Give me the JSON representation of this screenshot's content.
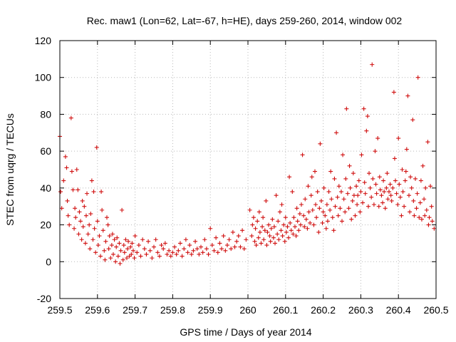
{
  "chart_data": {
    "type": "scatter",
    "title": "Rec. maw1 (Lon=62, Lat=-67, h=HE), days 259-260, 2014, window 002",
    "xlabel": "GPS time / Days of year 2014",
    "ylabel": "STEC from uqrg / TECUs",
    "xlim": [
      259.5,
      260.5
    ],
    "ylim": [
      -20,
      120
    ],
    "xticks": [
      259.5,
      259.6,
      259.7,
      259.8,
      259.9,
      260,
      260.1,
      260.2,
      260.3,
      260.4,
      260.5
    ],
    "xtick_labels": [
      "259.5",
      "259.6",
      "259.7",
      "259.8",
      "259.9",
      "260",
      "260.1",
      "260.2",
      "260.3",
      "260.4",
      "260.5"
    ],
    "yticks": [
      -20,
      0,
      20,
      40,
      60,
      80,
      100,
      120
    ],
    "ytick_labels": [
      "-20",
      "0",
      "20",
      "40",
      "60",
      "80",
      "100",
      "120"
    ],
    "grid": true,
    "marker": "+",
    "color": "#d01010",
    "points": [
      [
        259.5,
        68
      ],
      [
        259.502,
        38
      ],
      [
        259.505,
        29
      ],
      [
        259.51,
        44
      ],
      [
        259.515,
        57
      ],
      [
        259.518,
        51
      ],
      [
        259.52,
        33
      ],
      [
        259.522,
        25
      ],
      [
        259.525,
        20
      ],
      [
        259.53,
        78
      ],
      [
        259.532,
        49
      ],
      [
        259.535,
        39
      ],
      [
        259.538,
        18
      ],
      [
        259.54,
        29
      ],
      [
        259.542,
        24
      ],
      [
        259.545,
        50
      ],
      [
        259.548,
        39
      ],
      [
        259.55,
        15
      ],
      [
        259.552,
        27
      ],
      [
        259.555,
        22
      ],
      [
        259.558,
        12
      ],
      [
        259.56,
        33
      ],
      [
        259.562,
        19
      ],
      [
        259.565,
        30
      ],
      [
        259.568,
        10
      ],
      [
        259.57,
        25
      ],
      [
        259.572,
        37
      ],
      [
        259.575,
        15
      ],
      [
        259.578,
        20
      ],
      [
        259.58,
        7
      ],
      [
        259.582,
        26
      ],
      [
        259.585,
        44
      ],
      [
        259.588,
        12
      ],
      [
        259.59,
        38
      ],
      [
        259.592,
        18
      ],
      [
        259.595,
        5
      ],
      [
        259.598,
        62
      ],
      [
        259.6,
        22
      ],
      [
        259.602,
        9
      ],
      [
        259.605,
        14
      ],
      [
        259.608,
        3
      ],
      [
        259.61,
        38
      ],
      [
        259.612,
        28
      ],
      [
        259.615,
        17
      ],
      [
        259.618,
        6
      ],
      [
        259.62,
        1
      ],
      [
        259.622,
        11
      ],
      [
        259.625,
        24
      ],
      [
        259.628,
        20
      ],
      [
        259.63,
        7
      ],
      [
        259.632,
        14
      ],
      [
        259.635,
        2
      ],
      [
        259.638,
        9
      ],
      [
        259.64,
        15
      ],
      [
        259.642,
        4
      ],
      [
        259.645,
        12
      ],
      [
        259.648,
        0
      ],
      [
        259.65,
        8
      ],
      [
        259.652,
        13
      ],
      [
        259.655,
        3
      ],
      [
        259.658,
        10
      ],
      [
        259.66,
        -1
      ],
      [
        259.662,
        6
      ],
      [
        259.665,
        28
      ],
      [
        259.668,
        1
      ],
      [
        259.67,
        9
      ],
      [
        259.672,
        5
      ],
      [
        259.675,
        12
      ],
      [
        259.678,
        2
      ],
      [
        259.68,
        7
      ],
      [
        259.682,
        11
      ],
      [
        259.685,
        3
      ],
      [
        259.688,
        8
      ],
      [
        259.69,
        4
      ],
      [
        259.692,
        10
      ],
      [
        259.695,
        6
      ],
      [
        259.698,
        2
      ],
      [
        259.7,
        14
      ],
      [
        259.705,
        5
      ],
      [
        259.71,
        9
      ],
      [
        259.715,
        3
      ],
      [
        259.72,
        12
      ],
      [
        259.725,
        7
      ],
      [
        259.73,
        4
      ],
      [
        259.735,
        11
      ],
      [
        259.74,
        6
      ],
      [
        259.745,
        2
      ],
      [
        259.75,
        8
      ],
      [
        259.755,
        12
      ],
      [
        259.76,
        5
      ],
      [
        259.765,
        3
      ],
      [
        259.77,
        9
      ],
      [
        259.775,
        7
      ],
      [
        259.78,
        10
      ],
      [
        259.785,
        4
      ],
      [
        259.79,
        6
      ],
      [
        259.795,
        3
      ],
      [
        259.8,
        5
      ],
      [
        259.805,
        8
      ],
      [
        259.81,
        4
      ],
      [
        259.815,
        6
      ],
      [
        259.82,
        10
      ],
      [
        259.825,
        3
      ],
      [
        259.83,
        7
      ],
      [
        259.835,
        12
      ],
      [
        259.84,
        5
      ],
      [
        259.845,
        9
      ],
      [
        259.85,
        4
      ],
      [
        259.855,
        6
      ],
      [
        259.86,
        11
      ],
      [
        259.865,
        7
      ],
      [
        259.87,
        4
      ],
      [
        259.875,
        8
      ],
      [
        259.88,
        5
      ],
      [
        259.885,
        12
      ],
      [
        259.89,
        7
      ],
      [
        259.895,
        4
      ],
      [
        259.9,
        18
      ],
      [
        259.905,
        9
      ],
      [
        259.91,
        6
      ],
      [
        259.915,
        13
      ],
      [
        259.92,
        5
      ],
      [
        259.925,
        10
      ],
      [
        259.93,
        7
      ],
      [
        259.935,
        14
      ],
      [
        259.94,
        6
      ],
      [
        259.945,
        9
      ],
      [
        259.95,
        12
      ],
      [
        259.955,
        7
      ],
      [
        259.96,
        16
      ],
      [
        259.965,
        8
      ],
      [
        259.97,
        11
      ],
      [
        259.975,
        14
      ],
      [
        259.98,
        8
      ],
      [
        259.985,
        17
      ],
      [
        259.99,
        7
      ],
      [
        259.995,
        12
      ],
      [
        260.005,
        28
      ],
      [
        260.01,
        14
      ],
      [
        260.012,
        20
      ],
      [
        260.015,
        24
      ],
      [
        260.018,
        11
      ],
      [
        260.02,
        18
      ],
      [
        260.022,
        9
      ],
      [
        260.025,
        22
      ],
      [
        260.028,
        13
      ],
      [
        260.03,
        27
      ],
      [
        260.032,
        16
      ],
      [
        260.035,
        10
      ],
      [
        260.038,
        19
      ],
      [
        260.04,
        24
      ],
      [
        260.042,
        12
      ],
      [
        260.045,
        17
      ],
      [
        260.048,
        33
      ],
      [
        260.05,
        9
      ],
      [
        260.052,
        16
      ],
      [
        260.055,
        20
      ],
      [
        260.058,
        14
      ],
      [
        260.06,
        11
      ],
      [
        260.062,
        18
      ],
      [
        260.065,
        23
      ],
      [
        260.068,
        13
      ],
      [
        260.07,
        19
      ],
      [
        260.072,
        10
      ],
      [
        260.075,
        36
      ],
      [
        260.078,
        15
      ],
      [
        260.08,
        22
      ],
      [
        260.082,
        12
      ],
      [
        260.085,
        27
      ],
      [
        260.088,
        17
      ],
      [
        260.09,
        31
      ],
      [
        260.092,
        14
      ],
      [
        260.095,
        20
      ],
      [
        260.098,
        11
      ],
      [
        260.1,
        24
      ],
      [
        260.102,
        16
      ],
      [
        260.105,
        19
      ],
      [
        260.108,
        13
      ],
      [
        260.11,
        46
      ],
      [
        260.112,
        21
      ],
      [
        260.115,
        17
      ],
      [
        260.118,
        38
      ],
      [
        260.12,
        15
      ],
      [
        260.122,
        24
      ],
      [
        260.125,
        19
      ],
      [
        260.128,
        14
      ],
      [
        260.13,
        29
      ],
      [
        260.132,
        22
      ],
      [
        260.135,
        17
      ],
      [
        260.138,
        26
      ],
      [
        260.14,
        20
      ],
      [
        260.142,
        31
      ],
      [
        260.145,
        58
      ],
      [
        260.148,
        25
      ],
      [
        260.15,
        19
      ],
      [
        260.152,
        34
      ],
      [
        260.155,
        23
      ],
      [
        260.158,
        18
      ],
      [
        260.16,
        41
      ],
      [
        260.162,
        27
      ],
      [
        260.165,
        21
      ],
      [
        260.168,
        36
      ],
      [
        260.17,
        46
      ],
      [
        260.172,
        28
      ],
      [
        260.175,
        20
      ],
      [
        260.178,
        49
      ],
      [
        260.18,
        31
      ],
      [
        260.182,
        24
      ],
      [
        260.185,
        38
      ],
      [
        260.188,
        16
      ],
      [
        260.19,
        29
      ],
      [
        260.192,
        64
      ],
      [
        260.195,
        33
      ],
      [
        260.198,
        21
      ],
      [
        260.2,
        27
      ],
      [
        260.202,
        40
      ],
      [
        260.205,
        25
      ],
      [
        260.208,
        18
      ],
      [
        260.21,
        31
      ],
      [
        260.212,
        22
      ],
      [
        260.215,
        38
      ],
      [
        260.218,
        28
      ],
      [
        260.22,
        49
      ],
      [
        260.222,
        34
      ],
      [
        260.225,
        24
      ],
      [
        260.228,
        17
      ],
      [
        260.23,
        45
      ],
      [
        260.232,
        30
      ],
      [
        260.235,
        70
      ],
      [
        260.238,
        35
      ],
      [
        260.24,
        25
      ],
      [
        260.242,
        41
      ],
      [
        260.245,
        29
      ],
      [
        260.248,
        38
      ],
      [
        260.25,
        22
      ],
      [
        260.252,
        58
      ],
      [
        260.255,
        34
      ],
      [
        260.258,
        27
      ],
      [
        260.26,
        45
      ],
      [
        260.262,
        83
      ],
      [
        260.265,
        37
      ],
      [
        260.268,
        29
      ],
      [
        260.27,
        52
      ],
      [
        260.272,
        40
      ],
      [
        260.275,
        23
      ],
      [
        260.278,
        33
      ],
      [
        260.28,
        48
      ],
      [
        260.282,
        36
      ],
      [
        260.285,
        25
      ],
      [
        260.288,
        41
      ],
      [
        260.29,
        31
      ],
      [
        260.292,
        36
      ],
      [
        260.295,
        44
      ],
      [
        260.298,
        27
      ],
      [
        260.3,
        38
      ],
      [
        260.302,
        58
      ],
      [
        260.305,
        32
      ],
      [
        260.308,
        83
      ],
      [
        260.31,
        43
      ],
      [
        260.312,
        37
      ],
      [
        260.315,
        71
      ],
      [
        260.318,
        79
      ],
      [
        260.32,
        30
      ],
      [
        260.322,
        48
      ],
      [
        260.325,
        40
      ],
      [
        260.328,
        35
      ],
      [
        260.33,
        107
      ],
      [
        260.332,
        45
      ],
      [
        260.335,
        31
      ],
      [
        260.338,
        60
      ],
      [
        260.34,
        42
      ],
      [
        260.342,
        37
      ],
      [
        260.345,
        67
      ],
      [
        260.348,
        30
      ],
      [
        260.35,
        46
      ],
      [
        260.352,
        39
      ],
      [
        260.355,
        36
      ],
      [
        260.358,
        32
      ],
      [
        260.36,
        44
      ],
      [
        260.362,
        38
      ],
      [
        260.365,
        29
      ],
      [
        260.368,
        40
      ],
      [
        260.37,
        48
      ],
      [
        260.372,
        34
      ],
      [
        260.375,
        38
      ],
      [
        260.378,
        42
      ],
      [
        260.38,
        36
      ],
      [
        260.382,
        33
      ],
      [
        260.385,
        40
      ],
      [
        260.388,
        92
      ],
      [
        260.39,
        56
      ],
      [
        260.392,
        44
      ],
      [
        260.395,
        37
      ],
      [
        260.398,
        31
      ],
      [
        260.4,
        67
      ],
      [
        260.402,
        42
      ],
      [
        260.405,
        35
      ],
      [
        260.408,
        25
      ],
      [
        260.41,
        50
      ],
      [
        260.412,
        38
      ],
      [
        260.415,
        30
      ],
      [
        260.418,
        44
      ],
      [
        260.42,
        49
      ],
      [
        260.422,
        61
      ],
      [
        260.425,
        90
      ],
      [
        260.428,
        36
      ],
      [
        260.43,
        27
      ],
      [
        260.432,
        46
      ],
      [
        260.435,
        40
      ],
      [
        260.438,
        77
      ],
      [
        260.44,
        33
      ],
      [
        260.442,
        25
      ],
      [
        260.445,
        45
      ],
      [
        260.448,
        29
      ],
      [
        260.45,
        37
      ],
      [
        260.452,
        100
      ],
      [
        260.455,
        24
      ],
      [
        260.458,
        32
      ],
      [
        260.46,
        44
      ],
      [
        260.462,
        23
      ],
      [
        260.465,
        52
      ],
      [
        260.468,
        34
      ],
      [
        260.47,
        25
      ],
      [
        260.472,
        40
      ],
      [
        260.475,
        28
      ],
      [
        260.478,
        65
      ],
      [
        260.48,
        20
      ],
      [
        260.482,
        24
      ],
      [
        260.485,
        41
      ],
      [
        260.488,
        30
      ],
      [
        260.49,
        22
      ],
      [
        260.495,
        18
      ]
    ]
  }
}
